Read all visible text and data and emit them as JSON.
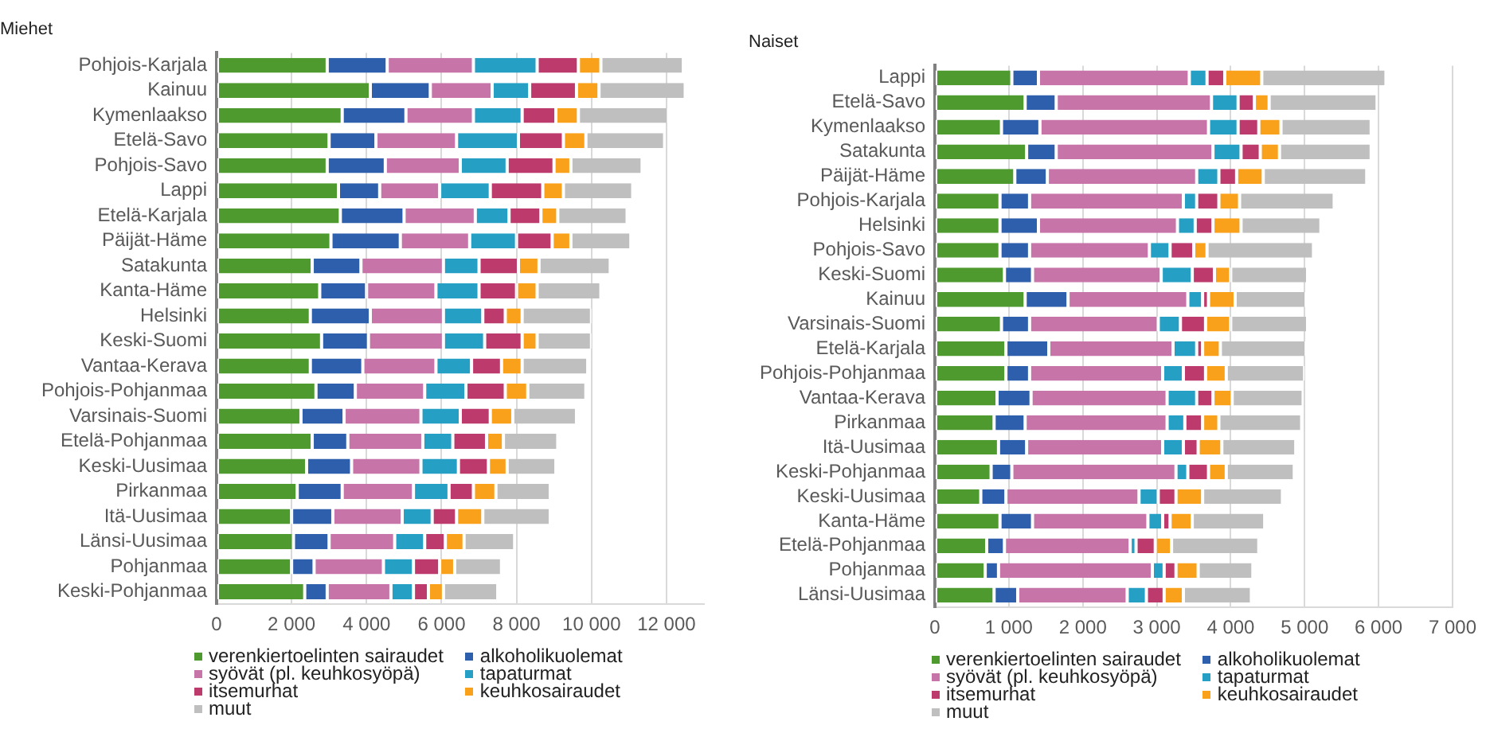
{
  "chart_data": [
    {
      "type": "bar",
      "title": "Miehet",
      "orientation": "horizontal",
      "stacked": true,
      "grid": "x",
      "legend": "bottom",
      "categories": [
        "Pohjois-Karjala",
        "Kainuu",
        "Kymenlaakso",
        "Etelä-Savo",
        "Pohjois-Savo",
        "Lappi",
        "Etelä-Karjala",
        "Päijät-Häme",
        "Satakunta",
        "Kanta-Häme",
        "Helsinki",
        "Keski-Suomi",
        "Vantaa-Kerava",
        "Pohjois-Pohjanmaa",
        "Varsinais-Suomi",
        "Etelä-Pohjanmaa",
        "Keski-Uusimaa",
        "Pirkanmaa",
        "Itä-Uusimaa",
        "Länsi-Uusimaa",
        "Pohjanmaa",
        "Keski-Pohjanmaa"
      ],
      "xlim": [
        0,
        13000
      ],
      "xticks": [
        0,
        {
          "value": 2000,
          "label": "2 000"
        },
        {
          "value": 4000,
          "label": "4 000"
        },
        {
          "value": 6000,
          "label": "6 000"
        },
        {
          "value": 8000,
          "label": "8 000"
        },
        {
          "value": 10000,
          "label": "10 000"
        },
        {
          "value": 12000,
          "label": "12 000"
        }
      ],
      "series": [
        {
          "name": "verenkiertoelinten sairaudet",
          "color": "#4e9a2f",
          "values": [
            2950,
            4100,
            3350,
            3000,
            2950,
            3250,
            3300,
            3050,
            2550,
            2750,
            2500,
            2800,
            2500,
            2650,
            2250,
            2550,
            2400,
            2150,
            2000,
            2050,
            2000,
            2350
          ]
        },
        {
          "name": "alkoholikuolemat",
          "color": "#2e5fac",
          "values": [
            1600,
            1600,
            1700,
            1250,
            1550,
            1100,
            1700,
            1850,
            1300,
            1250,
            1600,
            1250,
            1400,
            1050,
            1150,
            950,
            1200,
            1200,
            1100,
            950,
            600,
            600
          ]
        },
        {
          "name": "syövät (pl. keuhkosyöpä)",
          "color": "#c774a8",
          "values": [
            2300,
            1650,
            1800,
            2150,
            2000,
            1600,
            1900,
            1850,
            2200,
            1850,
            1950,
            2000,
            1950,
            1850,
            2050,
            2000,
            1850,
            1900,
            1850,
            1750,
            1850,
            1700
          ]
        },
        {
          "name": "tapaturmat",
          "color": "#25a0c4",
          "values": [
            1700,
            1000,
            1300,
            1650,
            1250,
            1350,
            900,
            1250,
            950,
            1150,
            1050,
            1100,
            950,
            1100,
            1050,
            800,
            1000,
            950,
            800,
            800,
            800,
            600
          ]
        },
        {
          "name": "itsemurhat",
          "color": "#bc3a6c",
          "values": [
            1100,
            1250,
            900,
            1200,
            1250,
            1400,
            850,
            950,
            1050,
            1000,
            600,
            1000,
            800,
            1050,
            800,
            900,
            800,
            650,
            650,
            550,
            700,
            400
          ]
        },
        {
          "name": "keuhkosairaudet",
          "color": "#f9a11b",
          "values": [
            600,
            600,
            600,
            600,
            450,
            550,
            450,
            500,
            550,
            550,
            450,
            400,
            550,
            600,
            600,
            450,
            500,
            600,
            700,
            500,
            400,
            400
          ]
        },
        {
          "name": "muut",
          "color": "#bfbfbf",
          "values": [
            2200,
            2300,
            2400,
            2100,
            1900,
            1850,
            1850,
            1600,
            1900,
            1700,
            1850,
            1450,
            1750,
            1550,
            1700,
            1450,
            1300,
            1450,
            1800,
            1350,
            1250,
            1450
          ]
        }
      ]
    },
    {
      "type": "bar",
      "title": "Naiset",
      "orientation": "horizontal",
      "stacked": true,
      "grid": "x",
      "legend": "bottom",
      "categories": [
        "Lappi",
        "Etelä-Savo",
        "Kymenlaakso",
        "Satakunta",
        "Päijät-Häme",
        "Pohjois-Karjala",
        "Helsinki",
        "Pohjois-Savo",
        "Keski-Suomi",
        "Kainuu",
        "Varsinais-Suomi",
        "Etelä-Karjala",
        "Pohjois-Pohjanmaa",
        "Vantaa-Kerava",
        "Pirkanmaa",
        "Itä-Uusimaa",
        "Keski-Pohjanmaa",
        "Keski-Uusimaa",
        "Kanta-Häme",
        "Etelä-Pohjanmaa",
        "Pohjanmaa",
        "Länsi-Uusimaa"
      ],
      "xlim": [
        0,
        7000
      ],
      "xticks": [
        0,
        {
          "value": 1000,
          "label": "1 000"
        },
        {
          "value": 2000,
          "label": "2 000"
        },
        {
          "value": 3000,
          "label": "3 000"
        },
        {
          "value": 4000,
          "label": "4 000"
        },
        {
          "value": 5000,
          "label": "5 000"
        },
        {
          "value": 6000,
          "label": "6 000"
        },
        {
          "value": 7000,
          "label": "7 000"
        }
      ],
      "series": [
        {
          "name": "verenkiertoelinten sairaudet",
          "color": "#4e9a2f",
          "values": [
            1040,
            1220,
            900,
            1240,
            1080,
            880,
            880,
            880,
            940,
            1220,
            900,
            960,
            960,
            840,
            800,
            860,
            760,
            620,
            880,
            700,
            680,
            800
          ]
        },
        {
          "name": "alkoholikuolemat",
          "color": "#2e5fac",
          "values": [
            360,
            420,
            520,
            400,
            440,
            400,
            520,
            400,
            380,
            580,
            380,
            580,
            320,
            460,
            420,
            380,
            280,
            340,
            440,
            240,
            180,
            320
          ]
        },
        {
          "name": "syövät (pl. keuhkosyöpä)",
          "color": "#c774a8",
          "values": [
            2040,
            2100,
            2280,
            2120,
            2020,
            2080,
            1880,
            1620,
            1740,
            1620,
            1740,
            1680,
            1800,
            1840,
            1920,
            1840,
            2220,
            1800,
            1560,
            1700,
            2080,
            1480
          ]
        },
        {
          "name": "tapaturmat",
          "color": "#25a0c4",
          "values": [
            240,
            360,
            400,
            380,
            300,
            180,
            240,
            280,
            420,
            200,
            300,
            320,
            280,
            400,
            240,
            280,
            160,
            260,
            200,
            80,
            160,
            260
          ]
        },
        {
          "name": "itsemurhat",
          "color": "#bc3a6c",
          "values": [
            240,
            220,
            280,
            260,
            240,
            300,
            240,
            320,
            300,
            80,
            340,
            80,
            300,
            220,
            240,
            200,
            280,
            240,
            100,
            260,
            160,
            240
          ]
        },
        {
          "name": "keuhkosairaudet",
          "color": "#f9a11b",
          "values": [
            500,
            200,
            300,
            260,
            360,
            280,
            380,
            180,
            220,
            360,
            340,
            240,
            280,
            260,
            220,
            320,
            240,
            360,
            300,
            220,
            300,
            260
          ]
        },
        {
          "name": "muut",
          "color": "#bfbfbf",
          "values": [
            1680,
            1460,
            1220,
            1240,
            1400,
            1280,
            1080,
            1440,
            1040,
            960,
            1040,
            1160,
            1060,
            960,
            1120,
            1000,
            920,
            1080,
            980,
            1180,
            740,
            920
          ]
        }
      ]
    }
  ]
}
